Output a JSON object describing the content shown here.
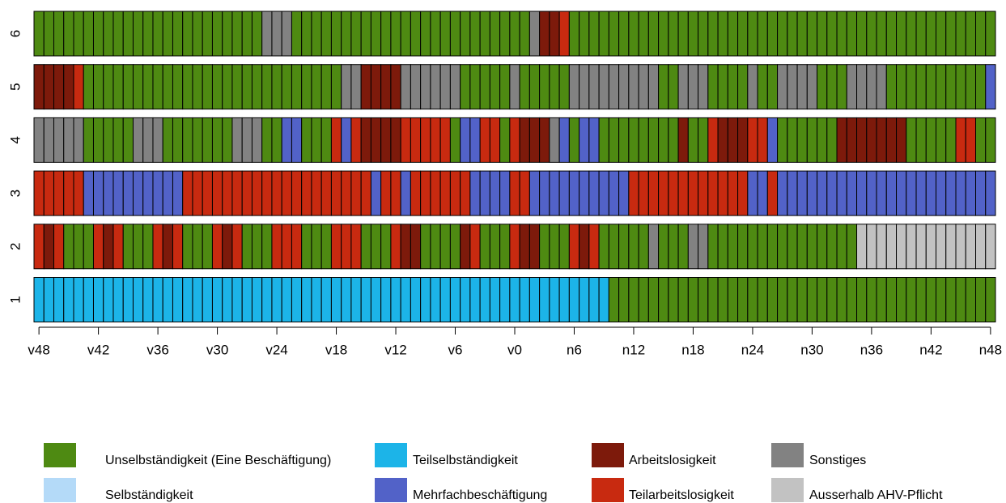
{
  "chart_data": {
    "type": "sequence",
    "states": [
      {
        "name": "Unselbständigkeit (Eine Beschäftigung)",
        "color": "#4e8a12"
      },
      {
        "name": "Selbständigkeit",
        "color": "#b4daf8"
      },
      {
        "name": "Teilselbständigkeit",
        "color": "#1cb4e8"
      },
      {
        "name": "Mehrfachbeschäftigung",
        "color": "#5262c8"
      },
      {
        "name": "Arbeitslosigkeit",
        "color": "#7d1a0b"
      },
      {
        "name": "Teilarbeitslosigkeit",
        "color": "#c82a10"
      },
      {
        "name": "Sonstiges",
        "color": "#828282"
      },
      {
        "name": "Ausserhalb AHV-Pflicht",
        "color": "#c2c2c2"
      }
    ],
    "x": [
      "v48",
      null,
      null,
      null,
      null,
      null,
      "v42",
      null,
      null,
      null,
      null,
      null,
      "v36",
      null,
      null,
      null,
      null,
      null,
      "v30",
      null,
      null,
      null,
      null,
      null,
      "v24",
      null,
      null,
      null,
      null,
      null,
      "v18",
      null,
      null,
      null,
      null,
      null,
      "v12",
      null,
      null,
      null,
      null,
      null,
      "v6",
      null,
      null,
      null,
      null,
      null,
      "v0",
      null,
      null,
      null,
      null,
      null,
      "n6",
      null,
      null,
      null,
      null,
      null,
      "n12",
      null,
      null,
      null,
      null,
      null,
      "n18",
      null,
      null,
      null,
      null,
      null,
      "n24",
      null,
      null,
      null,
      null,
      null,
      "n30",
      null,
      null,
      null,
      null,
      null,
      "n36",
      null,
      null,
      null,
      null,
      null,
      "n42",
      null,
      null,
      null,
      null,
      null,
      "n48"
    ],
    "sequences": [
      {
        "label": "6",
        "runs": [
          {
            "state": "Unselbständigkeit (Eine Beschäftigung)",
            "length": 23
          },
          {
            "state": "Sonstiges",
            "length": 3
          },
          {
            "state": "Unselbständigkeit (Eine Beschäftigung)",
            "length": 24
          },
          {
            "state": "Sonstiges",
            "length": 1
          },
          {
            "state": "Arbeitslosigkeit",
            "length": 2
          },
          {
            "state": "Teilarbeitslosigkeit",
            "length": 1
          },
          {
            "state": "Unselbständigkeit (Eine Beschäftigung)",
            "length": 43
          }
        ]
      },
      {
        "label": "5",
        "runs": [
          {
            "state": "Arbeitslosigkeit",
            "length": 4
          },
          {
            "state": "Teilarbeitslosigkeit",
            "length": 1
          },
          {
            "state": "Unselbständigkeit (Eine Beschäftigung)",
            "length": 26
          },
          {
            "state": "Sonstiges",
            "length": 2
          },
          {
            "state": "Arbeitslosigkeit",
            "length": 4
          },
          {
            "state": "Sonstiges",
            "length": 6
          },
          {
            "state": "Unselbständigkeit (Eine Beschäftigung)",
            "length": 5
          },
          {
            "state": "Sonstiges",
            "length": 1
          },
          {
            "state": "Unselbständigkeit (Eine Beschäftigung)",
            "length": 5
          },
          {
            "state": "Sonstiges",
            "length": 9
          },
          {
            "state": "Unselbständigkeit (Eine Beschäftigung)",
            "length": 2
          },
          {
            "state": "Sonstiges",
            "length": 3
          },
          {
            "state": "Unselbständigkeit (Eine Beschäftigung)",
            "length": 4
          },
          {
            "state": "Sonstiges",
            "length": 1
          },
          {
            "state": "Unselbständigkeit (Eine Beschäftigung)",
            "length": 2
          },
          {
            "state": "Sonstiges",
            "length": 4
          },
          {
            "state": "Unselbständigkeit (Eine Beschäftigung)",
            "length": 3
          },
          {
            "state": "Sonstiges",
            "length": 4
          },
          {
            "state": "Unselbständigkeit (Eine Beschäftigung)",
            "length": 10
          },
          {
            "state": "Mehrfachbeschäftigung",
            "length": 1
          }
        ]
      },
      {
        "label": "4",
        "runs": [
          {
            "state": "Sonstiges",
            "length": 5
          },
          {
            "state": "Unselbständigkeit (Eine Beschäftigung)",
            "length": 5
          },
          {
            "state": "Sonstiges",
            "length": 3
          },
          {
            "state": "Unselbständigkeit (Eine Beschäftigung)",
            "length": 7
          },
          {
            "state": "Sonstiges",
            "length": 3
          },
          {
            "state": "Unselbständigkeit (Eine Beschäftigung)",
            "length": 2
          },
          {
            "state": "Mehrfachbeschäftigung",
            "length": 2
          },
          {
            "state": "Unselbständigkeit (Eine Beschäftigung)",
            "length": 3
          },
          {
            "state": "Teilarbeitslosigkeit",
            "length": 1
          },
          {
            "state": "Mehrfachbeschäftigung",
            "length": 1
          },
          {
            "state": "Teilarbeitslosigkeit",
            "length": 1
          },
          {
            "state": "Arbeitslosigkeit",
            "length": 4
          },
          {
            "state": "Teilarbeitslosigkeit",
            "length": 5
          },
          {
            "state": "Unselbständigkeit (Eine Beschäftigung)",
            "length": 1
          },
          {
            "state": "Mehrfachbeschäftigung",
            "length": 2
          },
          {
            "state": "Teilarbeitslosigkeit",
            "length": 2
          },
          {
            "state": "Unselbständigkeit (Eine Beschäftigung)",
            "length": 1
          },
          {
            "state": "Teilarbeitslosigkeit",
            "length": 1
          },
          {
            "state": "Arbeitslosigkeit",
            "length": 3
          },
          {
            "state": "Sonstiges",
            "length": 1
          },
          {
            "state": "Mehrfachbeschäftigung",
            "length": 1
          },
          {
            "state": "Unselbständigkeit (Eine Beschäftigung)",
            "length": 1
          },
          {
            "state": "Mehrfachbeschäftigung",
            "length": 2
          },
          {
            "state": "Unselbständigkeit (Eine Beschäftigung)",
            "length": 8
          },
          {
            "state": "Arbeitslosigkeit",
            "length": 1
          },
          {
            "state": "Unselbständigkeit (Eine Beschäftigung)",
            "length": 2
          },
          {
            "state": "Teilarbeitslosigkeit",
            "length": 1
          },
          {
            "state": "Arbeitslosigkeit",
            "length": 3
          },
          {
            "state": "Teilarbeitslosigkeit",
            "length": 2
          },
          {
            "state": "Mehrfachbeschäftigung",
            "length": 1
          },
          {
            "state": "Unselbständigkeit (Eine Beschäftigung)",
            "length": 6
          },
          {
            "state": "Arbeitslosigkeit",
            "length": 7
          },
          {
            "state": "Unselbständigkeit (Eine Beschäftigung)",
            "length": 5
          },
          {
            "state": "Teilarbeitslosigkeit",
            "length": 2
          },
          {
            "state": "Unselbständigkeit (Eine Beschäftigung)",
            "length": 2
          }
        ]
      },
      {
        "label": "3",
        "runs": [
          {
            "state": "Teilarbeitslosigkeit",
            "length": 5
          },
          {
            "state": "Mehrfachbeschäftigung",
            "length": 10
          },
          {
            "state": "Teilarbeitslosigkeit",
            "length": 19
          },
          {
            "state": "Mehrfachbeschäftigung",
            "length": 1
          },
          {
            "state": "Teilarbeitslosigkeit",
            "length": 2
          },
          {
            "state": "Mehrfachbeschäftigung",
            "length": 1
          },
          {
            "state": "Teilarbeitslosigkeit",
            "length": 6
          },
          {
            "state": "Mehrfachbeschäftigung",
            "length": 4
          },
          {
            "state": "Teilarbeitslosigkeit",
            "length": 2
          },
          {
            "state": "Mehrfachbeschäftigung",
            "length": 10
          },
          {
            "state": "Teilarbeitslosigkeit",
            "length": 12
          },
          {
            "state": "Mehrfachbeschäftigung",
            "length": 2
          },
          {
            "state": "Teilarbeitslosigkeit",
            "length": 1
          },
          {
            "state": "Mehrfachbeschäftigung",
            "length": 22
          }
        ]
      },
      {
        "label": "2",
        "runs": [
          {
            "state": "Teilarbeitslosigkeit",
            "length": 1
          },
          {
            "state": "Arbeitslosigkeit",
            "length": 1
          },
          {
            "state": "Teilarbeitslosigkeit",
            "length": 1
          },
          {
            "state": "Unselbständigkeit (Eine Beschäftigung)",
            "length": 3
          },
          {
            "state": "Teilarbeitslosigkeit",
            "length": 1
          },
          {
            "state": "Arbeitslosigkeit",
            "length": 1
          },
          {
            "state": "Teilarbeitslosigkeit",
            "length": 1
          },
          {
            "state": "Unselbständigkeit (Eine Beschäftigung)",
            "length": 3
          },
          {
            "state": "Teilarbeitslosigkeit",
            "length": 1
          },
          {
            "state": "Arbeitslosigkeit",
            "length": 1
          },
          {
            "state": "Teilarbeitslosigkeit",
            "length": 1
          },
          {
            "state": "Unselbständigkeit (Eine Beschäftigung)",
            "length": 3
          },
          {
            "state": "Teilarbeitslosigkeit",
            "length": 1
          },
          {
            "state": "Arbeitslosigkeit",
            "length": 1
          },
          {
            "state": "Teilarbeitslosigkeit",
            "length": 1
          },
          {
            "state": "Unselbständigkeit (Eine Beschäftigung)",
            "length": 3
          },
          {
            "state": "Teilarbeitslosigkeit",
            "length": 3
          },
          {
            "state": "Unselbständigkeit (Eine Beschäftigung)",
            "length": 3
          },
          {
            "state": "Teilarbeitslosigkeit",
            "length": 3
          },
          {
            "state": "Unselbständigkeit (Eine Beschäftigung)",
            "length": 3
          },
          {
            "state": "Teilarbeitslosigkeit",
            "length": 1
          },
          {
            "state": "Arbeitslosigkeit",
            "length": 2
          },
          {
            "state": "Unselbständigkeit (Eine Beschäftigung)",
            "length": 4
          },
          {
            "state": "Arbeitslosigkeit",
            "length": 1
          },
          {
            "state": "Teilarbeitslosigkeit",
            "length": 1
          },
          {
            "state": "Unselbständigkeit (Eine Beschäftigung)",
            "length": 3
          },
          {
            "state": "Teilarbeitslosigkeit",
            "length": 1
          },
          {
            "state": "Arbeitslosigkeit",
            "length": 2
          },
          {
            "state": "Unselbständigkeit (Eine Beschäftigung)",
            "length": 3
          },
          {
            "state": "Teilarbeitslosigkeit",
            "length": 1
          },
          {
            "state": "Arbeitslosigkeit",
            "length": 1
          },
          {
            "state": "Teilarbeitslosigkeit",
            "length": 1
          },
          {
            "state": "Unselbständigkeit (Eine Beschäftigung)",
            "length": 5
          },
          {
            "state": "Sonstiges",
            "length": 1
          },
          {
            "state": "Unselbständigkeit (Eine Beschäftigung)",
            "length": 3
          },
          {
            "state": "Sonstiges",
            "length": 2
          },
          {
            "state": "Unselbständigkeit (Eine Beschäftigung)",
            "length": 15
          },
          {
            "state": "Ausserhalb AHV-Pflicht",
            "length": 14
          }
        ]
      },
      {
        "label": "1",
        "runs": [
          {
            "state": "Teilselbständigkeit",
            "length": 58
          },
          {
            "state": "Unselbständigkeit (Eine Beschäftigung)",
            "length": 39
          }
        ]
      }
    ]
  }
}
